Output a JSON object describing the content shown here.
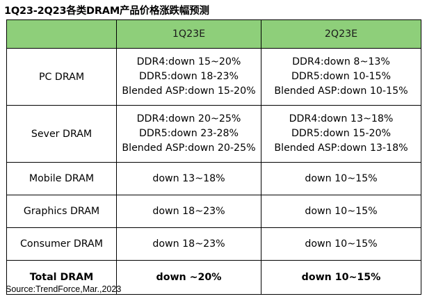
{
  "title": "1Q23-2Q23各类DRAM产品价格涨跌幅预测",
  "table": {
    "headers": [
      "",
      "1Q23E",
      "2Q23E"
    ],
    "rows": [
      {
        "label": "PC DRAM",
        "q1": [
          "DDR4:down 15~20%",
          "DDR5:down 18-23%",
          "Blended ASP:down 15-20%"
        ],
        "q2": [
          "DDR4:down 8~13%",
          "DDR5:down 10-15%",
          "Blended ASP:down 10-15%"
        ]
      },
      {
        "label": "Sever DRAM",
        "q1": [
          "DDR4:down 20~25%",
          "DDR5:down 23-28%",
          "Blended ASP:down 20-25%"
        ],
        "q2": [
          "DDR4:down 13~18%",
          "DDR5:down 15-20%",
          "Blended ASP:down 13-18%"
        ]
      },
      {
        "label": "Mobile DRAM",
        "q1": "down 13~18%",
        "q2": "down 10~15%"
      },
      {
        "label": "Graphics DRAM",
        "q1": "down 18~23%",
        "q2": "down 10~15%"
      },
      {
        "label": "Consumer DRAM",
        "q1": "down 18~23%",
        "q2": "down 10~15%"
      },
      {
        "label": "Total DRAM",
        "q1": "down ~20%",
        "q2": "down 10~15%"
      }
    ]
  },
  "source": "Source:TrendForce,Mar.,2023",
  "colors": {
    "header_bg": "#8ecf7a",
    "border": "#000000"
  }
}
